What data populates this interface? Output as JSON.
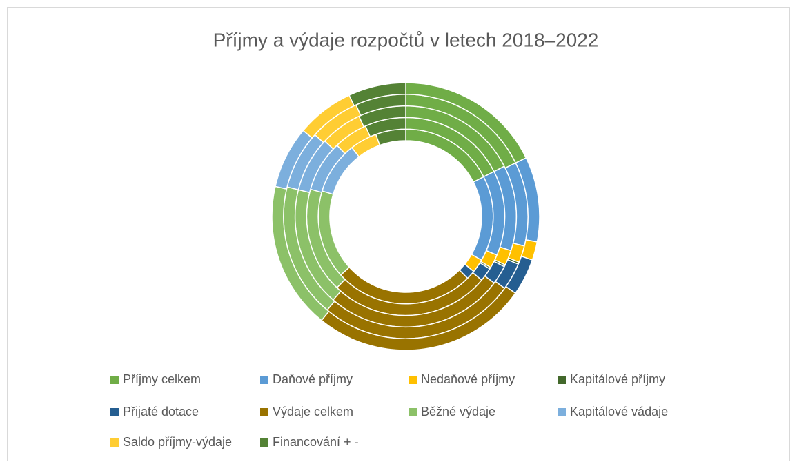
{
  "chart_data": {
    "type": "doughnut",
    "title": "Příjmy a výdaje rozpočtů v letech 2018–2022",
    "categories": [
      "Příjmy celkem",
      "Daňové příjmy",
      "Nedaňové příjmy",
      "Kapitálové příjmy",
      "Přijaté dotace",
      "Výdaje celkem",
      "Běžné výdaje",
      "Kapitálové vádaje",
      "Saldo příjmy-výdaje",
      "Financování + -"
    ],
    "colors": [
      "#70ad47",
      "#5b9bd5",
      "#ffc000",
      "#43682b",
      "#255e91",
      "#997300",
      "#8cc168",
      "#7cafdd",
      "#ffcd33",
      "#548235"
    ],
    "series": [
      {
        "values": [
          63,
          57,
          9,
          0,
          6,
          93,
          59,
          35,
          18,
          20
        ]
      },
      {
        "values": [
          63,
          50,
          8,
          1,
          8,
          94,
          62,
          30,
          20,
          24
        ]
      },
      {
        "values": [
          63,
          45,
          8,
          1,
          10,
          94,
          63,
          29,
          22,
          25
        ]
      },
      {
        "values": [
          64,
          40,
          8,
          1,
          13,
          94,
          64,
          28,
          24,
          24
        ]
      },
      {
        "values": [
          64,
          37,
          8,
          0,
          16,
          94,
          64,
          27,
          25,
          25
        ]
      }
    ],
    "legend": "bottom"
  }
}
